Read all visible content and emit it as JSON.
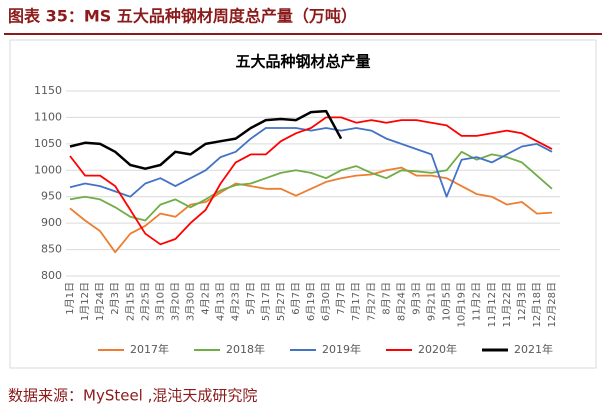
{
  "header": {
    "title": "图表 35：MS 五大品种钢材周度总产量（万吨）"
  },
  "chart_data": {
    "type": "line",
    "title": "五大品种钢材总产量",
    "categories": [
      "1月1日",
      "1月12日",
      "1月24日",
      "2月3日",
      "2月15日",
      "2月25日",
      "3月10日",
      "3月20日",
      "3月30日",
      "4月2日",
      "4月13日",
      "4月23日",
      "5月7日",
      "5月17日",
      "5月27日",
      "6月7日",
      "6月19日",
      "6月30日",
      "7月7日",
      "7月17日",
      "7月27日",
      "8月7日",
      "8月24日",
      "9月3日",
      "9月21日",
      "10月5日",
      "10月19日",
      "11月2日",
      "11月12日",
      "11月22日",
      "12月3日",
      "12月18日",
      "12月28日"
    ],
    "series": [
      {
        "name": "2017年",
        "color": "#ed7d31",
        "values": [
          928,
          905,
          885,
          845,
          880,
          895,
          918,
          912,
          935,
          940,
          958,
          975,
          970,
          965,
          965,
          952,
          965,
          978,
          985,
          990,
          992,
          1000,
          1005,
          990,
          990,
          985,
          970,
          955,
          950,
          935,
          940,
          918,
          920
        ]
      },
      {
        "name": "2018年",
        "color": "#70ad47",
        "values": [
          945,
          950,
          945,
          930,
          912,
          905,
          935,
          945,
          930,
          945,
          962,
          972,
          975,
          985,
          995,
          1000,
          995,
          985,
          1000,
          1008,
          995,
          985,
          1000,
          998,
          995,
          1000,
          1035,
          1020,
          1030,
          1025,
          1015,
          990,
          965
        ]
      },
      {
        "name": "2019年",
        "color": "#4472c4",
        "values": [
          968,
          975,
          970,
          960,
          950,
          975,
          985,
          970,
          985,
          1000,
          1025,
          1035,
          1060,
          1080,
          1080,
          1080,
          1075,
          1080,
          1075,
          1080,
          1075,
          1060,
          1050,
          1040,
          1030,
          950,
          1020,
          1025,
          1015,
          1030,
          1045,
          1050,
          1035
        ]
      },
      {
        "name": "2020年",
        "color": "#ff0000",
        "values": [
          1027,
          990,
          990,
          970,
          925,
          880,
          860,
          870,
          900,
          925,
          975,
          1015,
          1030,
          1030,
          1055,
          1070,
          1080,
          1100,
          1100,
          1090,
          1095,
          1090,
          1095,
          1095,
          1090,
          1085,
          1065,
          1065,
          1070,
          1075,
          1070,
          1055,
          1040
        ]
      },
      {
        "name": "2021年",
        "color": "#000000",
        "values": [
          1045,
          1052,
          1050,
          1035,
          1010,
          1003,
          1010,
          1035,
          1030,
          1050,
          1055,
          1060,
          1080,
          1095,
          1097,
          1095,
          1110,
          1112,
          1060,
          null,
          null,
          null,
          null,
          null,
          null,
          null,
          null,
          null,
          null,
          null,
          null,
          null,
          null
        ]
      }
    ],
    "ylim": [
      800,
      1150
    ],
    "yticks": [
      800,
      850,
      900,
      950,
      1000,
      1050,
      1100,
      1150
    ],
    "grid": true,
    "legend": "bottom"
  },
  "footer": {
    "source": "数据来源：MySteel ,混沌天成研究院"
  }
}
